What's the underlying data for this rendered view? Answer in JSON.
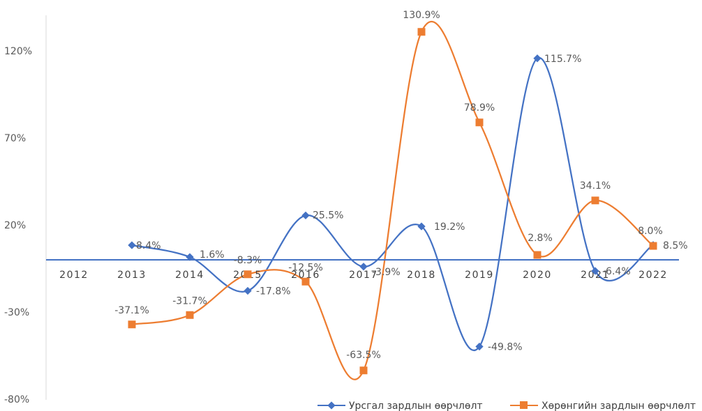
{
  "chart_data": {
    "type": "line",
    "categories": [
      "2012",
      "2013",
      "2014",
      "2015",
      "2016",
      "2017",
      "2018",
      "2019",
      "2020",
      "2021",
      "2022"
    ],
    "y_ticks": [
      {
        "value": 120,
        "label": "120%"
      },
      {
        "value": 70,
        "label": "70%"
      },
      {
        "value": 20,
        "label": "20%"
      },
      {
        "value": -30,
        "label": "-30%"
      },
      {
        "value": -80,
        "label": "-80%"
      }
    ],
    "ylim": [
      -80,
      132
    ],
    "smooth": true,
    "legend_position": "bottom-right",
    "series": [
      {
        "name": "Урсгал зардлын өөрчлөлт",
        "color": "#4472C4",
        "marker": "diamond",
        "values": [
          null,
          8.4,
          1.6,
          -17.8,
          25.5,
          -3.9,
          19.2,
          -49.8,
          115.7,
          -6.4,
          8.5
        ],
        "labels": [
          null,
          "8.4%",
          "1.6%",
          "-17.8%",
          "25.5%",
          "-3.9%",
          "19.2%",
          "-49.8%",
          "115.7%",
          "-6.4%",
          "8.5%"
        ]
      },
      {
        "name": "Хөрөнгийн зардлын өөрчлөлт",
        "color": "#ED7D31",
        "marker": "square",
        "values": [
          null,
          -37.1,
          -31.7,
          -8.3,
          -12.5,
          -63.5,
          130.9,
          78.9,
          2.8,
          34.1,
          8.0
        ],
        "labels": [
          null,
          "-37.1%",
          "-31.7%",
          "-8.3%",
          "-12.5%",
          "-63.5%",
          "130.9%",
          "78.9%",
          "2.8%",
          "34.1%",
          "8.0%"
        ]
      }
    ]
  }
}
